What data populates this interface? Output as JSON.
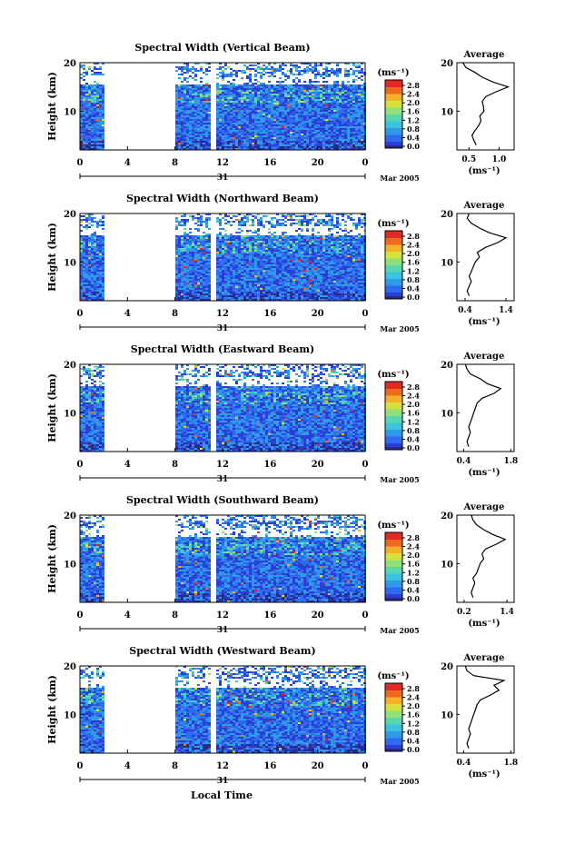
{
  "page": {
    "xlabel": "Local Time"
  },
  "chart_data": [
    {
      "panel": "vertical",
      "type": "heatmap",
      "title": "Spectral Width (Vertical Beam)",
      "ylabel": "Height (km)",
      "yticks": [
        "20",
        "10"
      ],
      "xticks": [
        "0",
        "4",
        "8",
        "12",
        "16",
        "20",
        "0"
      ],
      "xlim": [
        0,
        24
      ],
      "ylim": [
        2,
        20
      ],
      "day_label": "31",
      "month_label": "Mar 2005",
      "data_gaps_hours": [
        [
          2,
          8
        ],
        [
          10.9,
          11.3
        ]
      ],
      "colorbar": {
        "unit": "(ms⁻¹)",
        "ticks": [
          "2.8",
          "2.4",
          "2.0",
          "1.6",
          "1.2",
          "0.8",
          "0.4",
          "0.0"
        ]
      },
      "average": {
        "title": "Average",
        "xlabel": "(ms⁻¹)",
        "xticks": [
          "0.5",
          "1.0"
        ],
        "xlim": [
          0.3,
          1.25
        ],
        "heights": [
          3,
          4,
          5,
          6,
          7,
          8,
          9,
          10,
          11,
          12,
          13,
          14,
          15,
          16,
          17,
          18,
          19,
          20
        ],
        "values": [
          0.62,
          0.58,
          0.55,
          0.6,
          0.66,
          0.7,
          0.68,
          0.75,
          0.74,
          0.72,
          0.78,
          0.95,
          1.15,
          0.9,
          0.72,
          0.6,
          0.45,
          0.4
        ]
      }
    },
    {
      "panel": "northward",
      "type": "heatmap",
      "title": "Spectral Width (Northward Beam)",
      "ylabel": "Height (km)",
      "yticks": [
        "20",
        "10"
      ],
      "xticks": [
        "0",
        "4",
        "8",
        "12",
        "16",
        "20",
        "0"
      ],
      "xlim": [
        0,
        24
      ],
      "ylim": [
        2,
        20
      ],
      "day_label": "31",
      "month_label": "Mar 2005",
      "data_gaps_hours": [
        [
          2,
          8
        ],
        [
          10.9,
          11.3
        ]
      ],
      "colorbar": {
        "unit": "(ms⁻¹)",
        "ticks": [
          "2.8",
          "2.4",
          "2.0",
          "1.6",
          "1.2",
          "0.8",
          "0.4",
          "0.0"
        ]
      },
      "average": {
        "title": "Average",
        "xlabel": "(ms⁻¹)",
        "xticks": [
          "0.4",
          "1.4"
        ],
        "xlim": [
          0.2,
          1.6
        ],
        "heights": [
          3,
          4,
          5,
          6,
          7,
          8,
          9,
          10,
          11,
          12,
          13,
          14,
          15,
          16,
          17,
          18,
          19,
          20
        ],
        "values": [
          0.5,
          0.45,
          0.5,
          0.55,
          0.5,
          0.55,
          0.6,
          0.65,
          0.75,
          0.7,
          0.9,
          1.2,
          1.4,
          1.0,
          0.75,
          0.55,
          0.45,
          0.5
        ]
      }
    },
    {
      "panel": "eastward",
      "type": "heatmap",
      "title": "Spectral Width (Eastward Beam)",
      "ylabel": "Height (km)",
      "yticks": [
        "20",
        "10"
      ],
      "xticks": [
        "0",
        "4",
        "8",
        "12",
        "16",
        "20",
        "0"
      ],
      "xlim": [
        0,
        24
      ],
      "ylim": [
        2,
        20
      ],
      "day_label": "31",
      "month_label": "Mar 2005",
      "data_gaps_hours": [
        [
          2,
          8
        ],
        [
          10.9,
          11.3
        ]
      ],
      "colorbar": {
        "unit": "(ms⁻¹)",
        "ticks": [
          "2.8",
          "2.4",
          "2.0",
          "1.6",
          "1.2",
          "0.8",
          "0.4",
          "0.0"
        ]
      },
      "average": {
        "title": "Average",
        "xlabel": "(ms⁻¹)",
        "xticks": [
          "0.4",
          "1.8"
        ],
        "xlim": [
          0.2,
          1.9
        ],
        "heights": [
          3,
          4,
          5,
          6,
          7,
          8,
          9,
          10,
          11,
          12,
          13,
          14,
          15,
          16,
          17,
          18,
          19,
          20
        ],
        "values": [
          0.55,
          0.5,
          0.55,
          0.6,
          0.55,
          0.6,
          0.65,
          0.7,
          0.75,
          0.8,
          0.95,
          1.3,
          1.5,
          1.1,
          0.9,
          0.6,
          0.5,
          0.45
        ]
      }
    },
    {
      "panel": "southward",
      "type": "heatmap",
      "title": "Spectral Width (Southward Beam)",
      "ylabel": "Height (km)",
      "yticks": [
        "20",
        "10"
      ],
      "xticks": [
        "0",
        "4",
        "8",
        "12",
        "16",
        "20",
        "0"
      ],
      "xlim": [
        0,
        24
      ],
      "ylim": [
        2,
        20
      ],
      "day_label": "31",
      "month_label": "Mar 2005",
      "data_gaps_hours": [
        [
          2,
          8
        ],
        [
          10.9,
          11.3
        ]
      ],
      "colorbar": {
        "unit": "(ms⁻¹)",
        "ticks": [
          "2.8",
          "2.4",
          "2.0",
          "1.6",
          "1.2",
          "0.8",
          "0.4",
          "0.0"
        ]
      },
      "average": {
        "title": "Average",
        "xlabel": "(ms⁻¹)",
        "xticks": [
          "0.2",
          "1.4"
        ],
        "xlim": [
          0.0,
          1.6
        ],
        "heights": [
          3,
          4,
          5,
          6,
          7,
          8,
          9,
          10,
          11,
          12,
          13,
          14,
          15,
          16,
          17,
          18,
          19,
          20
        ],
        "values": [
          0.45,
          0.4,
          0.45,
          0.5,
          0.45,
          0.55,
          0.6,
          0.65,
          0.75,
          0.7,
          0.8,
          1.1,
          1.35,
          1.0,
          0.75,
          0.55,
          0.45,
          0.4
        ]
      }
    },
    {
      "panel": "westward",
      "type": "heatmap",
      "title": "Spectral Width (Westward Beam)",
      "ylabel": "Height (km)",
      "yticks": [
        "20",
        "10"
      ],
      "xticks": [
        "0",
        "4",
        "8",
        "12",
        "16",
        "20",
        "0"
      ],
      "xlim": [
        0,
        24
      ],
      "ylim": [
        2,
        20
      ],
      "day_label": "31",
      "month_label": "Mar 2005",
      "data_gaps_hours": [
        [
          2,
          8
        ],
        [
          10.9,
          11.3
        ]
      ],
      "colorbar": {
        "unit": "(ms⁻¹)",
        "ticks": [
          "2.8",
          "2.4",
          "2.0",
          "1.6",
          "1.2",
          "0.8",
          "0.4",
          "0.0"
        ]
      },
      "average": {
        "title": "Average",
        "xlabel": "(ms⁻¹)",
        "xticks": [
          "0.4",
          "1.8"
        ],
        "xlim": [
          0.2,
          1.9
        ],
        "heights": [
          3,
          4,
          5,
          6,
          7,
          8,
          9,
          10,
          11,
          12,
          13,
          14,
          15,
          16,
          17,
          18,
          19,
          20
        ],
        "values": [
          0.55,
          0.5,
          0.55,
          0.6,
          0.55,
          0.6,
          0.65,
          0.7,
          0.75,
          0.8,
          0.9,
          1.2,
          1.45,
          1.3,
          1.6,
          0.7,
          0.5,
          0.45
        ]
      }
    }
  ],
  "colormap": [
    "#2a2a88",
    "#2b3fd6",
    "#2f6af0",
    "#2f9be8",
    "#3bc4e0",
    "#58d6b0",
    "#8fe07a",
    "#d6e23c",
    "#f3b12a",
    "#ee6a1f",
    "#e02a25"
  ]
}
